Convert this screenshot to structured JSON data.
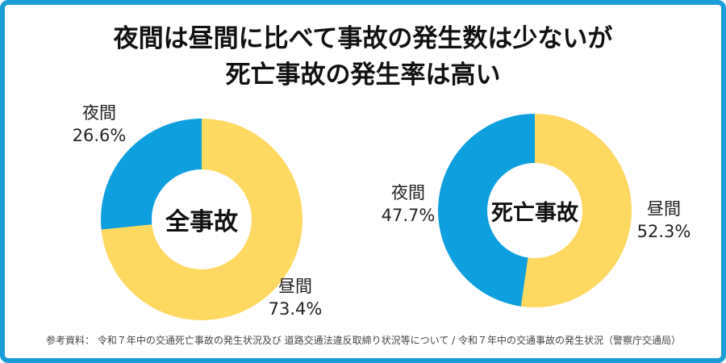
{
  "title": {
    "line1": "夜間は昼間に比べて事故の発生数は少ないが",
    "line2": "死亡事故の発生率は高い"
  },
  "chart_data": [
    {
      "type": "pie",
      "variant": "donut",
      "title": "全事故",
      "start_angle_deg": 0,
      "direction": "clockwise",
      "slices": [
        {
          "label": "昼間",
          "value": 73.4,
          "pct_label": "73.4%",
          "color": "#FDD962"
        },
        {
          "label": "夜間",
          "value": 26.6,
          "pct_label": "26.6%",
          "color": "#0D9FDE"
        }
      ]
    },
    {
      "type": "pie",
      "variant": "donut",
      "title": "死亡事故",
      "start_angle_deg": 0,
      "direction": "clockwise",
      "slices": [
        {
          "label": "昼間",
          "value": 52.3,
          "pct_label": "52.3%",
          "color": "#FDD962"
        },
        {
          "label": "夜間",
          "value": 47.7,
          "pct_label": "47.7%",
          "color": "#0D9FDE"
        }
      ]
    }
  ],
  "colors": {
    "day": "#FDD962",
    "night": "#0D9FDE",
    "card_border": "#1B9DD8",
    "title_text": "#111111",
    "label_text": "#222222",
    "footer_text": "#444444"
  },
  "footer": {
    "source": "参考資料： 令和７年中の交通死亡事故の発生状況及び 道路交通法違反取締り状況等について / 令和７年中の交通事故の発生状況（警察庁交通局）"
  }
}
